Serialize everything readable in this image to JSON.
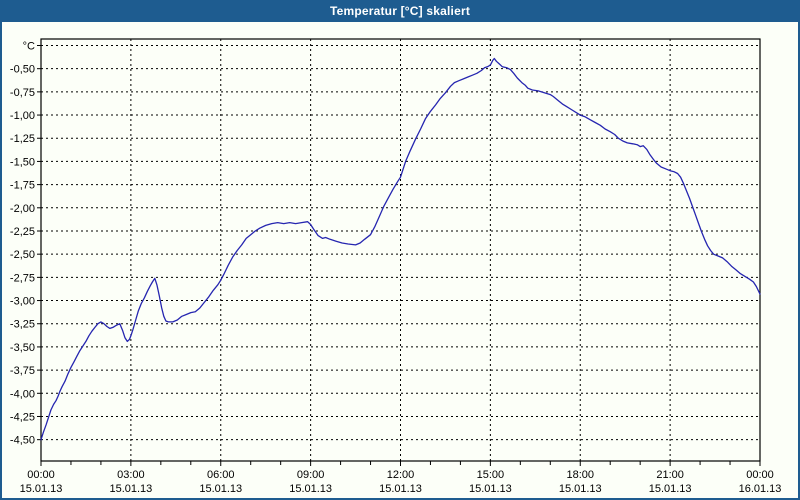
{
  "window": {
    "title": "Temperatur [°C] skaliert",
    "title_bar_color": "#1e5c90",
    "border_color": "#1e5c90",
    "background_color": "#fcfff8"
  },
  "chart_data": {
    "type": "line",
    "title": "Temperatur [°C] skaliert",
    "grid": "dashed",
    "legend": "none",
    "line_color": "#2626b0",
    "ylim": [
      -4.73,
      -0.18
    ],
    "xlim_hours": [
      0,
      24
    ],
    "y_unit_label": "°C",
    "y_ticks": [
      {
        "value": -0.25,
        "label": "°C"
      },
      {
        "value": -0.5,
        "label": "-0,50"
      },
      {
        "value": -0.75,
        "label": "-0,75"
      },
      {
        "value": -1.0,
        "label": "-1,00"
      },
      {
        "value": -1.25,
        "label": "-1,25"
      },
      {
        "value": -1.5,
        "label": "-1,50"
      },
      {
        "value": -1.75,
        "label": "-1,75"
      },
      {
        "value": -2.0,
        "label": "-2,00"
      },
      {
        "value": -2.25,
        "label": "-2,25"
      },
      {
        "value": -2.5,
        "label": "-2,50"
      },
      {
        "value": -2.75,
        "label": "-2,75"
      },
      {
        "value": -3.0,
        "label": "-3,00"
      },
      {
        "value": -3.25,
        "label": "-3,25"
      },
      {
        "value": -3.5,
        "label": "-3,50"
      },
      {
        "value": -3.75,
        "label": "-3,75"
      },
      {
        "value": -4.0,
        "label": "-4,00"
      },
      {
        "value": -4.25,
        "label": "-4,25"
      },
      {
        "value": -4.5,
        "label": "-4,50"
      }
    ],
    "x_ticks": [
      {
        "hour": 0,
        "time": "00:00",
        "date": "15.01.13"
      },
      {
        "hour": 3,
        "time": "03:00",
        "date": "15.01.13"
      },
      {
        "hour": 6,
        "time": "06:00",
        "date": "15.01.13"
      },
      {
        "hour": 9,
        "time": "09:00",
        "date": "15.01.13"
      },
      {
        "hour": 12,
        "time": "12:00",
        "date": "15.01.13"
      },
      {
        "hour": 15,
        "time": "15:00",
        "date": "15.01.13"
      },
      {
        "hour": 18,
        "time": "18:00",
        "date": "15.01.13"
      },
      {
        "hour": 21,
        "time": "21:00",
        "date": "15.01.13"
      },
      {
        "hour": 24,
        "time": "00:00",
        "date": "16.01.13"
      }
    ],
    "minor_x_tick_every_hours": 1,
    "series": [
      {
        "points": [
          [
            0.0,
            -4.5
          ],
          [
            0.08,
            -4.42
          ],
          [
            0.17,
            -4.34
          ],
          [
            0.25,
            -4.26
          ],
          [
            0.33,
            -4.18
          ],
          [
            0.42,
            -4.12
          ],
          [
            0.5,
            -4.08
          ],
          [
            0.57,
            -4.03
          ],
          [
            0.63,
            -3.98
          ],
          [
            0.7,
            -3.93
          ],
          [
            0.8,
            -3.87
          ],
          [
            0.9,
            -3.79
          ],
          [
            1.0,
            -3.72
          ],
          [
            1.1,
            -3.66
          ],
          [
            1.2,
            -3.6
          ],
          [
            1.3,
            -3.54
          ],
          [
            1.4,
            -3.49
          ],
          [
            1.5,
            -3.44
          ],
          [
            1.6,
            -3.38
          ],
          [
            1.7,
            -3.33
          ],
          [
            1.8,
            -3.29
          ],
          [
            1.9,
            -3.25
          ],
          [
            2.0,
            -3.23
          ],
          [
            2.1,
            -3.25
          ],
          [
            2.2,
            -3.28
          ],
          [
            2.3,
            -3.3
          ],
          [
            2.4,
            -3.29
          ],
          [
            2.5,
            -3.27
          ],
          [
            2.63,
            -3.25
          ],
          [
            2.72,
            -3.32
          ],
          [
            2.8,
            -3.4
          ],
          [
            2.88,
            -3.44
          ],
          [
            2.95,
            -3.42
          ],
          [
            3.0,
            -3.38
          ],
          [
            3.07,
            -3.31
          ],
          [
            3.15,
            -3.22
          ],
          [
            3.25,
            -3.11
          ],
          [
            3.35,
            -3.03
          ],
          [
            3.45,
            -2.97
          ],
          [
            3.55,
            -2.9
          ],
          [
            3.65,
            -2.84
          ],
          [
            3.72,
            -2.8
          ],
          [
            3.8,
            -2.76
          ],
          [
            3.87,
            -2.83
          ],
          [
            3.95,
            -2.95
          ],
          [
            4.03,
            -3.08
          ],
          [
            4.1,
            -3.17
          ],
          [
            4.17,
            -3.22
          ],
          [
            4.25,
            -3.23
          ],
          [
            4.4,
            -3.23
          ],
          [
            4.55,
            -3.21
          ],
          [
            4.7,
            -3.17
          ],
          [
            4.85,
            -3.15
          ],
          [
            5.0,
            -3.13
          ],
          [
            5.15,
            -3.12
          ],
          [
            5.3,
            -3.08
          ],
          [
            5.45,
            -3.02
          ],
          [
            5.6,
            -2.96
          ],
          [
            5.75,
            -2.89
          ],
          [
            5.9,
            -2.83
          ],
          [
            6.0,
            -2.78
          ],
          [
            6.1,
            -2.72
          ],
          [
            6.25,
            -2.62
          ],
          [
            6.4,
            -2.53
          ],
          [
            6.55,
            -2.46
          ],
          [
            6.7,
            -2.4
          ],
          [
            6.85,
            -2.33
          ],
          [
            7.0,
            -2.29
          ],
          [
            7.15,
            -2.25
          ],
          [
            7.3,
            -2.22
          ],
          [
            7.5,
            -2.19
          ],
          [
            7.7,
            -2.17
          ],
          [
            7.9,
            -2.16
          ],
          [
            8.1,
            -2.17
          ],
          [
            8.3,
            -2.16
          ],
          [
            8.5,
            -2.17
          ],
          [
            8.7,
            -2.16
          ],
          [
            8.9,
            -2.15
          ],
          [
            9.0,
            -2.18
          ],
          [
            9.1,
            -2.23
          ],
          [
            9.25,
            -2.3
          ],
          [
            9.4,
            -2.33
          ],
          [
            9.5,
            -2.32
          ],
          [
            9.65,
            -2.34
          ],
          [
            9.85,
            -2.36
          ],
          [
            10.05,
            -2.38
          ],
          [
            10.25,
            -2.39
          ],
          [
            10.5,
            -2.4
          ],
          [
            10.65,
            -2.38
          ],
          [
            10.8,
            -2.34
          ],
          [
            11.0,
            -2.29
          ],
          [
            11.15,
            -2.2
          ],
          [
            11.3,
            -2.09
          ],
          [
            11.45,
            -1.98
          ],
          [
            11.6,
            -1.89
          ],
          [
            11.75,
            -1.8
          ],
          [
            11.9,
            -1.72
          ],
          [
            12.0,
            -1.67
          ],
          [
            12.17,
            -1.5
          ],
          [
            12.33,
            -1.38
          ],
          [
            12.5,
            -1.26
          ],
          [
            12.67,
            -1.15
          ],
          [
            12.83,
            -1.04
          ],
          [
            13.0,
            -0.96
          ],
          [
            13.17,
            -0.89
          ],
          [
            13.33,
            -0.82
          ],
          [
            13.5,
            -0.76
          ],
          [
            13.67,
            -0.69
          ],
          [
            13.8,
            -0.65
          ],
          [
            13.95,
            -0.63
          ],
          [
            14.1,
            -0.61
          ],
          [
            14.25,
            -0.59
          ],
          [
            14.4,
            -0.57
          ],
          [
            14.55,
            -0.55
          ],
          [
            14.7,
            -0.52
          ],
          [
            14.8,
            -0.49
          ],
          [
            14.9,
            -0.48
          ],
          [
            15.0,
            -0.46
          ],
          [
            15.08,
            -0.41
          ],
          [
            15.13,
            -0.39
          ],
          [
            15.2,
            -0.42
          ],
          [
            15.3,
            -0.45
          ],
          [
            15.4,
            -0.48
          ],
          [
            15.55,
            -0.49
          ],
          [
            15.67,
            -0.51
          ],
          [
            15.78,
            -0.55
          ],
          [
            15.9,
            -0.6
          ],
          [
            16.05,
            -0.65
          ],
          [
            16.17,
            -0.68
          ],
          [
            16.25,
            -0.71
          ],
          [
            16.4,
            -0.73
          ],
          [
            16.6,
            -0.74
          ],
          [
            16.8,
            -0.76
          ],
          [
            17.0,
            -0.78
          ],
          [
            17.1,
            -0.8
          ],
          [
            17.25,
            -0.84
          ],
          [
            17.4,
            -0.88
          ],
          [
            17.55,
            -0.91
          ],
          [
            17.7,
            -0.94
          ],
          [
            17.85,
            -0.97
          ],
          [
            18.0,
            -1.0
          ],
          [
            18.17,
            -1.02
          ],
          [
            18.33,
            -1.05
          ],
          [
            18.5,
            -1.08
          ],
          [
            18.67,
            -1.11
          ],
          [
            18.83,
            -1.15
          ],
          [
            19.0,
            -1.18
          ],
          [
            19.15,
            -1.21
          ],
          [
            19.27,
            -1.25
          ],
          [
            19.42,
            -1.28
          ],
          [
            19.57,
            -1.3
          ],
          [
            19.75,
            -1.31
          ],
          [
            19.9,
            -1.32
          ],
          [
            20.0,
            -1.34
          ],
          [
            20.1,
            -1.33
          ],
          [
            20.22,
            -1.37
          ],
          [
            20.33,
            -1.43
          ],
          [
            20.45,
            -1.48
          ],
          [
            20.55,
            -1.52
          ],
          [
            20.7,
            -1.56
          ],
          [
            20.85,
            -1.58
          ],
          [
            21.0,
            -1.6
          ],
          [
            21.12,
            -1.61
          ],
          [
            21.25,
            -1.63
          ],
          [
            21.35,
            -1.67
          ],
          [
            21.45,
            -1.74
          ],
          [
            21.55,
            -1.82
          ],
          [
            21.65,
            -1.9
          ],
          [
            21.75,
            -1.99
          ],
          [
            21.85,
            -2.08
          ],
          [
            21.95,
            -2.17
          ],
          [
            22.05,
            -2.26
          ],
          [
            22.15,
            -2.34
          ],
          [
            22.25,
            -2.41
          ],
          [
            22.35,
            -2.46
          ],
          [
            22.45,
            -2.5
          ],
          [
            22.6,
            -2.52
          ],
          [
            22.75,
            -2.54
          ],
          [
            22.9,
            -2.58
          ],
          [
            23.05,
            -2.63
          ],
          [
            23.2,
            -2.67
          ],
          [
            23.35,
            -2.71
          ],
          [
            23.5,
            -2.74
          ],
          [
            23.65,
            -2.77
          ],
          [
            23.78,
            -2.8
          ],
          [
            23.88,
            -2.85
          ],
          [
            24.0,
            -2.93
          ]
        ]
      }
    ]
  }
}
